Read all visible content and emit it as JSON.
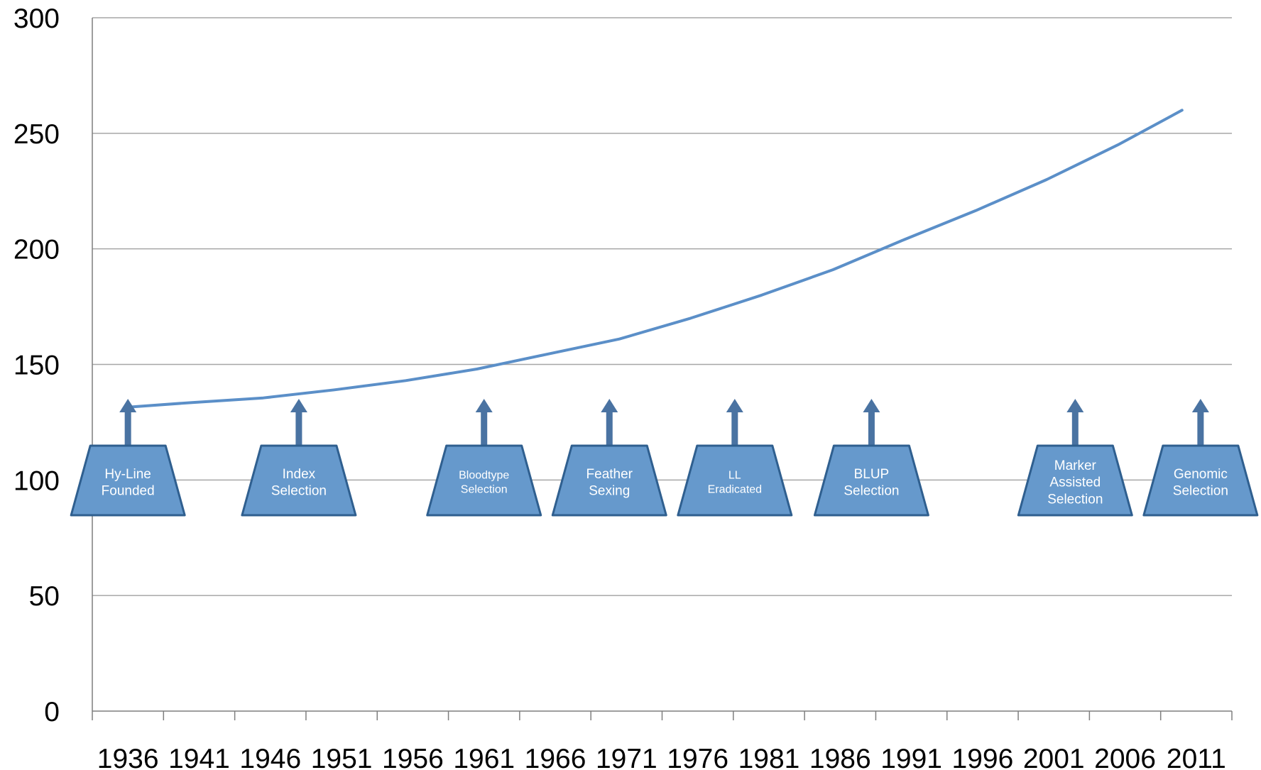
{
  "chart_data": {
    "type": "line",
    "title": "",
    "xlabel": "",
    "ylabel": "",
    "ylim": [
      0,
      300
    ],
    "y_ticks": [
      "0",
      "50",
      "100",
      "150",
      "200",
      "250",
      "300"
    ],
    "categories": [
      "1936",
      "1941",
      "1946",
      "1951",
      "1956",
      "1961",
      "1966",
      "1971",
      "1976",
      "1981",
      "1986",
      "1991",
      "1996",
      "2001",
      "2006",
      "2011"
    ],
    "grid": true,
    "legend": "none",
    "colors": {
      "line": "#5B8FC8",
      "marker_fill": "#6699CC",
      "marker_stroke": "#2F5F8F",
      "arrow": "#4A73A2",
      "axis": "#7F7F7F",
      "grid": "#A6A6A6"
    },
    "series": [
      {
        "x": [
          1938.5,
          1943,
          1948,
          1953,
          1958,
          1963,
          1968,
          1973,
          1978,
          1983,
          1988,
          1993,
          1998,
          2003,
          2008,
          2012.5
        ],
        "values": [
          131.5,
          133.5,
          135.5,
          139,
          143,
          148,
          154.5,
          161,
          170,
          180,
          191,
          204,
          216.5,
          230,
          245,
          260
        ]
      }
    ],
    "milestones": [
      {
        "year": 1938.5,
        "lines": [
          "Hy-Line",
          "Founded"
        ],
        "font_size": 19
      },
      {
        "year": 1950.5,
        "lines": [
          "Index",
          "Selection"
        ],
        "font_size": 19
      },
      {
        "year": 1963.5,
        "lines": [
          "Bloodtype",
          "Selection"
        ],
        "font_size": 16
      },
      {
        "year": 1972.3,
        "lines": [
          "Feather",
          "Sexing"
        ],
        "font_size": 19
      },
      {
        "year": 1981.1,
        "lines": [
          "LL",
          "Eradicated"
        ],
        "font_size": 16
      },
      {
        "year": 1990.7,
        "lines": [
          "BLUP",
          "Selection"
        ],
        "font_size": 19
      },
      {
        "year": 2005.0,
        "lines": [
          "Marker",
          "Assisted",
          "Selection"
        ],
        "font_size": 19
      },
      {
        "year": 2013.8,
        "lines": [
          "Genomic",
          "Selection"
        ],
        "font_size": 19
      }
    ]
  }
}
